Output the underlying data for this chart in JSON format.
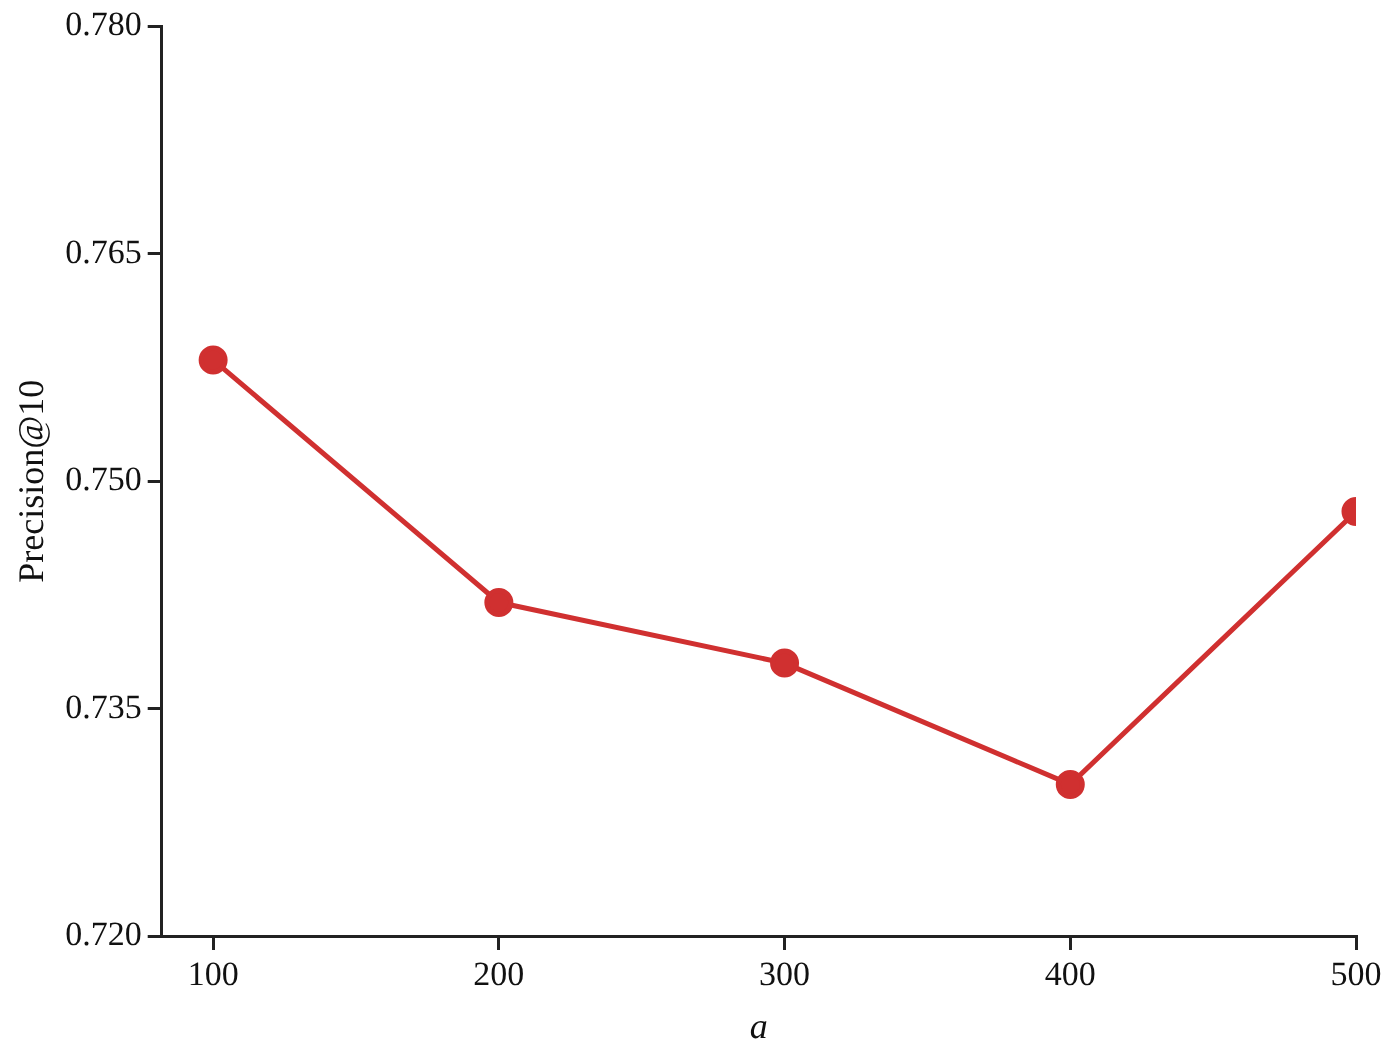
{
  "chart_data": {
    "type": "line",
    "xlabel": "a",
    "ylabel": "Precision@10",
    "x": [
      100,
      200,
      300,
      400,
      500
    ],
    "series": [
      {
        "color": "#d03030",
        "values": [
          0.758,
          0.742,
          0.738,
          0.73,
          0.748
        ]
      }
    ],
    "xlim": [
      82,
      500
    ],
    "xticks": [
      100,
      200,
      300,
      400,
      500
    ],
    "ylim": [
      0.72,
      0.78
    ],
    "yticks": [
      {
        "value": 0.72,
        "label": "0.720"
      },
      {
        "value": 0.735,
        "label": "0.735"
      },
      {
        "value": 0.75,
        "label": "0.750"
      },
      {
        "value": 0.765,
        "label": "0.765"
      },
      {
        "value": 0.78,
        "label": "0.780"
      }
    ],
    "grid": false,
    "legend": false,
    "marker": "circle",
    "line_style": "solid"
  }
}
